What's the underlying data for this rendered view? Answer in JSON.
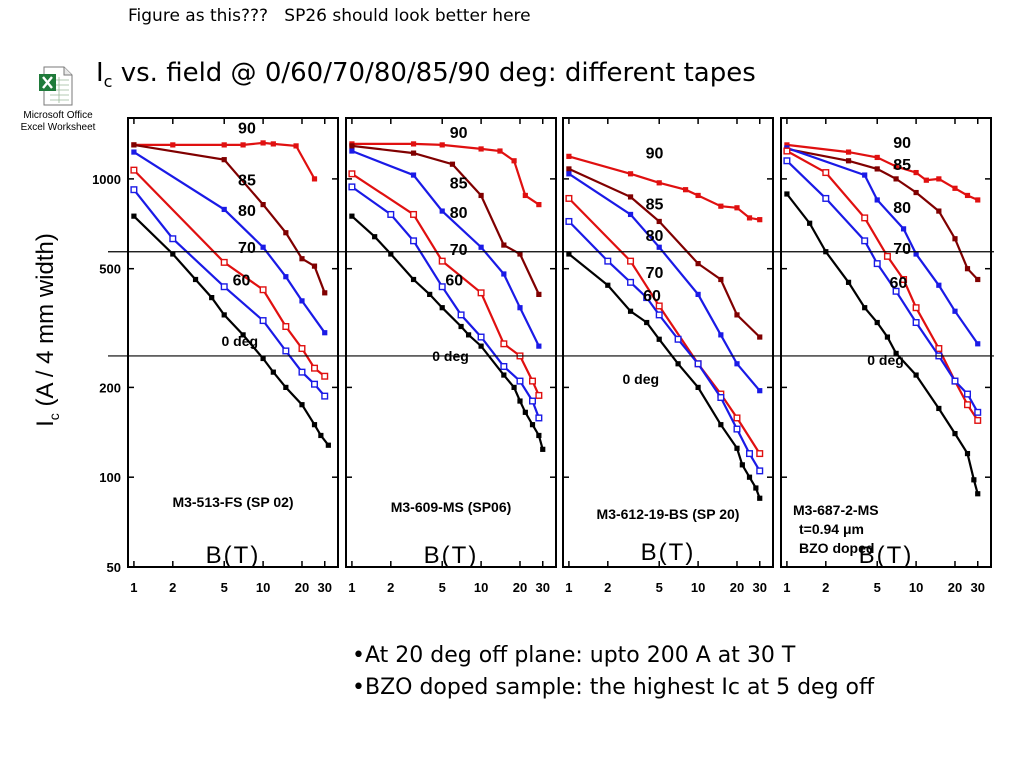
{
  "header": {
    "note": "Figure as this???   SP26 should look better here",
    "title_main": "I",
    "title_sub": "c",
    "title_rest": " vs. field @ 0/60/70/80/85/90 deg: different tapes"
  },
  "embed": {
    "icon": "excel-icon",
    "label_line1": "Microsoft Office",
    "label_line2": "Excel Worksheet"
  },
  "axes": {
    "y_label_main": "I",
    "y_label_sub": "c",
    "y_label_rest": " (A /  4 mm width)",
    "y_ticks": [
      {
        "value": 1000,
        "label": "1000"
      },
      {
        "value": 500,
        "label": "500"
      },
      {
        "value": 200,
        "label": "200"
      },
      {
        "value": 100,
        "label": "100"
      },
      {
        "value": 50,
        "label": "50"
      }
    ],
    "x_ticks": [
      {
        "value": 1,
        "label": "1"
      },
      {
        "value": 2,
        "label": "2"
      },
      {
        "value": 5,
        "label": "5"
      },
      {
        "value": 10,
        "label": "10"
      },
      {
        "value": 20,
        "label": "20"
      },
      {
        "value": 30,
        "label": "30"
      }
    ],
    "x_label": "B(T)"
  },
  "chart_data": {
    "type": "line",
    "x_scale": "log",
    "y_scale": "log",
    "xlim": [
      0.9,
      38
    ],
    "ylim": [
      50,
      1600
    ],
    "colors": {
      "90": "#e01010",
      "85": "#800000",
      "80": "#1a1ae6",
      "70": "#e01010",
      "60": "#1a1ae6",
      "0": "#000000"
    },
    "reference_lines": [
      570,
      255
    ],
    "panels": [
      {
        "sample": "M3-513-FS (SP 02)",
        "sample_lines": [],
        "series": [
          {
            "name": "90",
            "x": [
              1,
              2,
              5,
              7,
              10,
              12,
              18,
              25
            ],
            "y": [
              1300,
              1300,
              1300,
              1300,
              1320,
              1310,
              1290,
              1000
            ]
          },
          {
            "name": "85",
            "x": [
              1,
              5,
              10,
              15,
              20,
              25,
              30
            ],
            "y": [
              1300,
              1160,
              820,
              660,
              540,
              510,
              415
            ]
          },
          {
            "name": "80",
            "x": [
              1,
              5,
              10,
              15,
              20,
              30
            ],
            "y": [
              1230,
              790,
              590,
              470,
              390,
              305
            ]
          },
          {
            "name": "70",
            "x": [
              1,
              5,
              10,
              15,
              20,
              25,
              30
            ],
            "y": [
              1070,
              525,
              425,
              320,
              270,
              232,
              218
            ]
          },
          {
            "name": "60",
            "x": [
              1,
              2,
              5,
              10,
              15,
              20,
              25,
              30
            ],
            "y": [
              920,
              630,
              435,
              335,
              265,
              225,
              205,
              187
            ]
          },
          {
            "name": "0 deg",
            "x": [
              1,
              2,
              3,
              4,
              5,
              7,
              10,
              12,
              15,
              20,
              25,
              28,
              32
            ],
            "y": [
              750,
              560,
              460,
              400,
              350,
              300,
              250,
              225,
              200,
              175,
              150,
              138,
              128
            ]
          }
        ],
        "labels": [
          {
            "text": "90",
            "x": 7.5,
            "y": 1420
          },
          {
            "text": "85",
            "x": 7.5,
            "y": 950
          },
          {
            "text": "80",
            "x": 7.5,
            "y": 750
          },
          {
            "text": "70",
            "x": 7.5,
            "y": 565
          },
          {
            "text": "60",
            "x": 6.8,
            "y": 440
          },
          {
            "text": "0 deg",
            "x": 6.6,
            "y": 275
          }
        ]
      },
      {
        "sample": "M3-609-MS  (SP06)",
        "sample_lines": [],
        "series": [
          {
            "name": "90",
            "x": [
              1,
              3,
              5,
              10,
              14,
              18,
              22,
              28
            ],
            "y": [
              1310,
              1310,
              1300,
              1260,
              1240,
              1150,
              880,
              820
            ]
          },
          {
            "name": "85",
            "x": [
              1,
              3,
              6,
              10,
              15,
              20,
              28
            ],
            "y": [
              1290,
              1220,
              1120,
              880,
              600,
              560,
              410
            ]
          },
          {
            "name": "80",
            "x": [
              1,
              3,
              5,
              10,
              15,
              20,
              28
            ],
            "y": [
              1240,
              1030,
              780,
              590,
              480,
              370,
              275
            ]
          },
          {
            "name": "70",
            "x": [
              1,
              3,
              5,
              10,
              15,
              20,
              25,
              28
            ],
            "y": [
              1040,
              760,
              530,
              415,
              280,
              255,
              210,
              188
            ]
          },
          {
            "name": "60",
            "x": [
              1,
              2,
              3,
              5,
              7,
              10,
              15,
              20,
              25,
              28
            ],
            "y": [
              940,
              760,
              620,
              435,
              350,
              295,
              235,
              210,
              180,
              158
            ]
          },
          {
            "name": "0 deg",
            "x": [
              1,
              1.5,
              2,
              3,
              4,
              5,
              7,
              8,
              10,
              15,
              18,
              20,
              22,
              25,
              28,
              30
            ],
            "y": [
              750,
              640,
              560,
              460,
              410,
              370,
              320,
              300,
              275,
              220,
              200,
              180,
              165,
              150,
              138,
              124
            ]
          }
        ],
        "labels": [
          {
            "text": "90",
            "x": 6.7,
            "y": 1370
          },
          {
            "text": "85",
            "x": 6.7,
            "y": 930
          },
          {
            "text": "80",
            "x": 6.7,
            "y": 740
          },
          {
            "text": "70",
            "x": 6.7,
            "y": 555
          },
          {
            "text": "60",
            "x": 6.2,
            "y": 440
          },
          {
            "text": "0 deg",
            "x": 5.8,
            "y": 245
          }
        ]
      },
      {
        "sample": "M3-612-19-BS (SP 20)",
        "sample_lines": [],
        "series": [
          {
            "name": "90",
            "x": [
              1,
              3,
              5,
              8,
              10,
              15,
              20,
              25,
              30
            ],
            "y": [
              1190,
              1040,
              970,
              920,
              880,
              810,
              800,
              740,
              730
            ]
          },
          {
            "name": "85",
            "x": [
              1,
              3,
              5,
              10,
              15,
              20,
              30
            ],
            "y": [
              1080,
              870,
              720,
              520,
              460,
              350,
              295
            ]
          },
          {
            "name": "80",
            "x": [
              1,
              3,
              5,
              10,
              15,
              20,
              30
            ],
            "y": [
              1040,
              760,
              590,
              410,
              300,
              240,
              195
            ]
          },
          {
            "name": "70",
            "x": [
              1,
              3,
              5,
              10,
              15,
              20,
              30
            ],
            "y": [
              860,
              530,
              375,
              240,
              190,
              158,
              120
            ]
          },
          {
            "name": "60",
            "x": [
              1,
              2,
              3,
              4,
              5,
              7,
              10,
              15,
              20,
              25,
              30
            ],
            "y": [
              720,
              530,
              450,
              400,
              350,
              290,
              240,
              185,
              145,
              120,
              105
            ]
          },
          {
            "name": "0 deg",
            "x": [
              1,
              2,
              3,
              4,
              5,
              7,
              10,
              15,
              20,
              22,
              25,
              28,
              30
            ],
            "y": [
              560,
              440,
              360,
              330,
              290,
              240,
              200,
              150,
              125,
              110,
              100,
              92,
              85
            ]
          }
        ],
        "labels": [
          {
            "text": "90",
            "x": 4.6,
            "y": 1170
          },
          {
            "text": "85",
            "x": 4.6,
            "y": 790
          },
          {
            "text": "80",
            "x": 4.6,
            "y": 620
          },
          {
            "text": "70",
            "x": 4.6,
            "y": 465
          },
          {
            "text": "60",
            "x": 4.4,
            "y": 390
          },
          {
            "text": "0 deg",
            "x": 3.6,
            "y": 205
          }
        ]
      },
      {
        "sample": "M3-687-2-MS",
        "sample_lines": [
          "t=0.94 μm",
          "BZO doped"
        ],
        "series": [
          {
            "name": "90",
            "x": [
              1,
              3,
              5,
              7,
              10,
              12,
              15,
              20,
              25,
              30
            ],
            "y": [
              1300,
              1230,
              1180,
              1100,
              1050,
              990,
              1000,
              930,
              880,
              850
            ]
          },
          {
            "name": "85",
            "x": [
              1,
              3,
              5,
              7,
              10,
              15,
              20,
              25,
              30
            ],
            "y": [
              1260,
              1150,
              1080,
              1000,
              900,
              780,
              630,
              500,
              460
            ]
          },
          {
            "name": "80",
            "x": [
              1,
              4,
              5,
              8,
              10,
              15,
              20,
              30
            ],
            "y": [
              1270,
              1030,
              850,
              680,
              560,
              440,
              360,
              280
            ]
          },
          {
            "name": "70",
            "x": [
              1,
              2,
              4,
              6,
              8,
              10,
              15,
              20,
              25,
              30
            ],
            "y": [
              1240,
              1050,
              740,
              550,
              460,
              370,
              270,
              210,
              175,
              155
            ]
          },
          {
            "name": "60",
            "x": [
              1,
              2,
              4,
              5,
              7,
              10,
              15,
              20,
              25,
              30
            ],
            "y": [
              1150,
              860,
              620,
              520,
              420,
              330,
              255,
              210,
              190,
              165
            ]
          },
          {
            "name": "0 deg",
            "x": [
              1,
              1.5,
              2,
              3,
              4,
              5,
              6,
              7,
              10,
              15,
              20,
              25,
              28,
              30
            ],
            "y": [
              890,
              710,
              570,
              450,
              370,
              330,
              295,
              260,
              220,
              170,
              140,
              120,
              98,
              88
            ]
          }
        ],
        "labels": [
          {
            "text": "90",
            "x": 7.8,
            "y": 1270
          },
          {
            "text": "85",
            "x": 7.8,
            "y": 1070
          },
          {
            "text": "80",
            "x": 7.8,
            "y": 770
          },
          {
            "text": "70",
            "x": 7.8,
            "y": 560
          },
          {
            "text": "60",
            "x": 7.3,
            "y": 430
          },
          {
            "text": "0 deg",
            "x": 5.8,
            "y": 238
          }
        ]
      }
    ]
  },
  "bullets": [
    "•At 20 deg off plane: upto 200 A at 30 T",
    "•BZO doped sample: the highest Ic at 5 deg off"
  ]
}
